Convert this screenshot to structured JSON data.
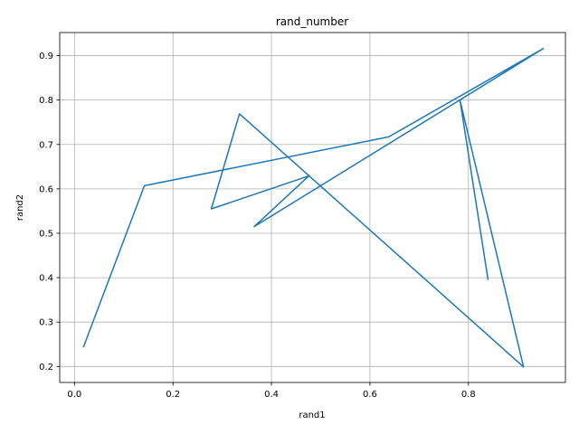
{
  "chart_data": {
    "type": "line",
    "title": "rand_number",
    "xlabel": "rand1",
    "ylabel": "rand2",
    "xlim": [
      -0.03,
      0.997
    ],
    "ylim": [
      0.164,
      0.952
    ],
    "xticks": [
      0.0,
      0.2,
      0.4,
      0.6,
      0.8
    ],
    "xtick_labels": [
      "0.0",
      "0.2",
      "0.4",
      "0.6",
      "0.8"
    ],
    "yticks": [
      0.2,
      0.3,
      0.4,
      0.5,
      0.6,
      0.7,
      0.8,
      0.9
    ],
    "ytick_labels": [
      "0.2",
      "0.3",
      "0.4",
      "0.5",
      "0.6",
      "0.7",
      "0.8",
      "0.9"
    ],
    "grid": true,
    "series": [
      {
        "color": "#1f77b4",
        "x": [
          0.018,
          0.142,
          0.638,
          0.952,
          0.365,
          0.476,
          0.278,
          0.335,
          0.912,
          0.783,
          0.84
        ],
        "y": [
          0.243,
          0.607,
          0.717,
          0.916,
          0.515,
          0.629,
          0.555,
          0.769,
          0.199,
          0.799,
          0.395
        ]
      }
    ]
  }
}
